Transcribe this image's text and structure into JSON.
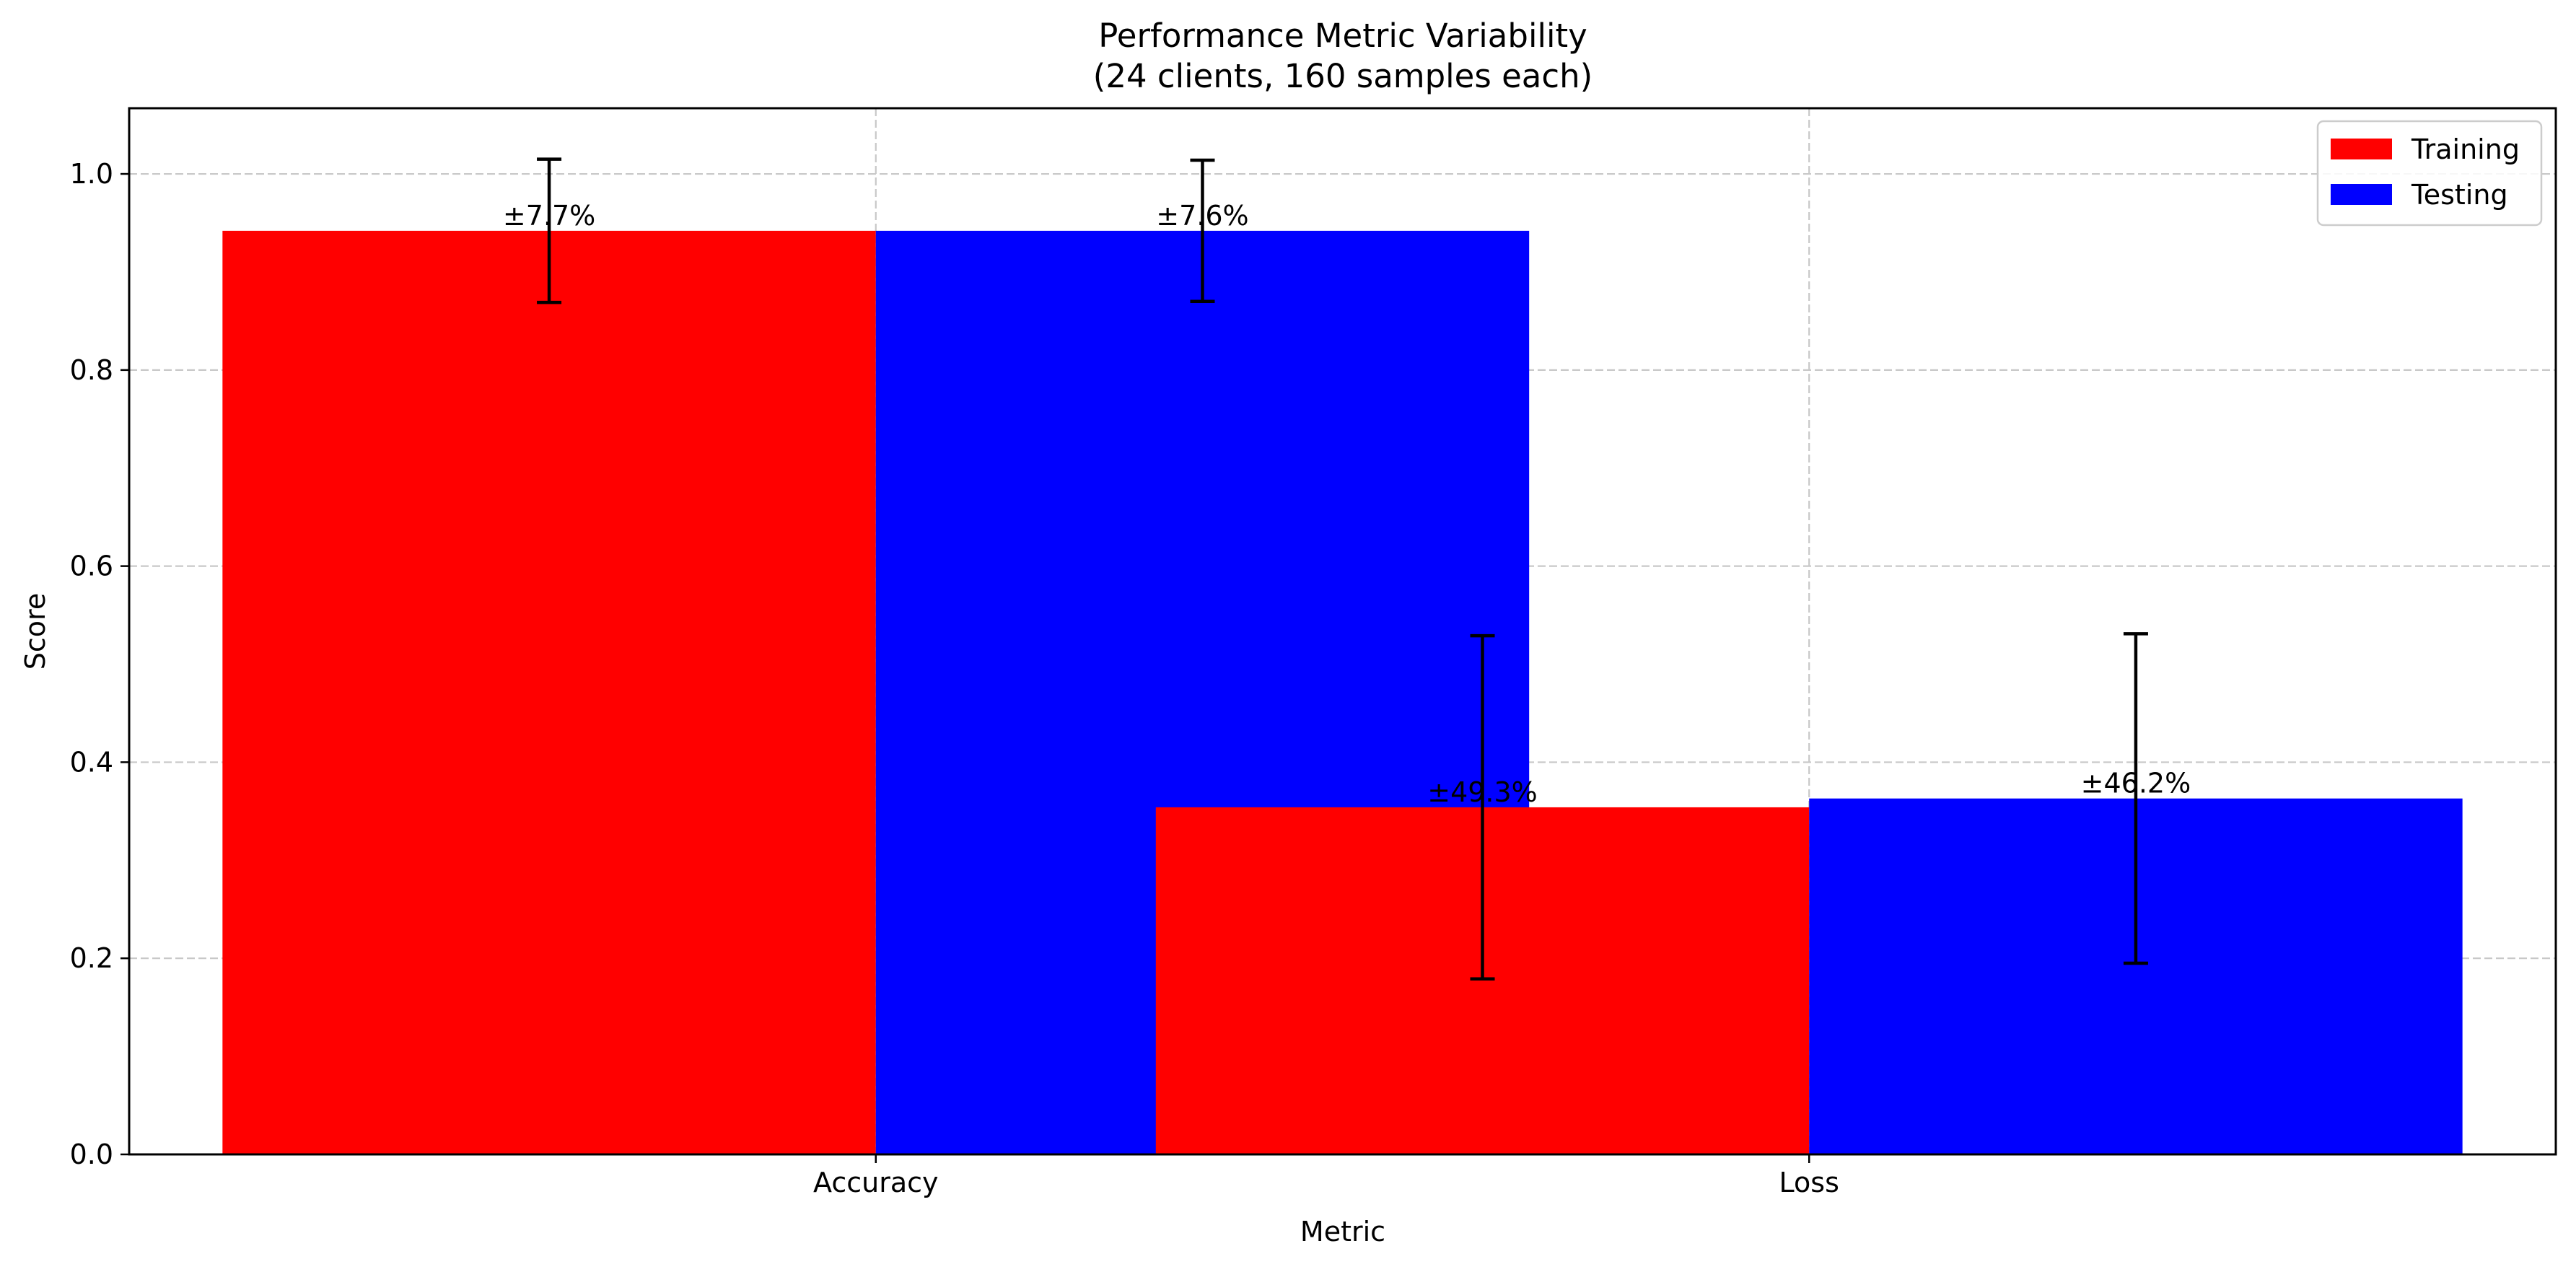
{
  "chart_data": {
    "type": "bar",
    "title": "Performance Metric Variability",
    "subtitle": "(24 clients, 160 samples each)",
    "xlabel": "Metric",
    "ylabel": "Score",
    "categories": [
      "Accuracy",
      "Loss"
    ],
    "series": [
      {
        "name": "Training",
        "color": "#ff0000",
        "values": [
          0.942,
          0.354
        ],
        "errors": [
          0.073,
          0.175
        ],
        "labels": [
          "±7.7%",
          "±49.3%"
        ]
      },
      {
        "name": "Testing",
        "color": "#0000ff",
        "values": [
          0.942,
          0.363
        ],
        "errors": [
          0.072,
          0.168
        ],
        "labels": [
          "±7.6%",
          "±46.2%"
        ]
      }
    ],
    "ylim": [
      0,
      1.067
    ],
    "yticks": [
      0.0,
      0.2,
      0.4,
      0.6,
      0.8,
      1.0
    ],
    "ytick_labels": [
      "0.0",
      "0.2",
      "0.4",
      "0.6",
      "0.8",
      "1.0"
    ],
    "grid": true,
    "legend_position": "top-right"
  }
}
